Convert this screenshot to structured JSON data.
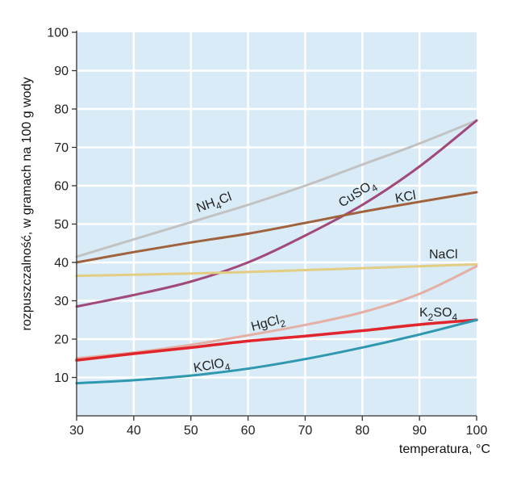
{
  "chart_data": {
    "type": "line",
    "title": "",
    "xlabel": "temperatura, °C",
    "ylabel": "rozpuszczalność, w gramach na 100 g wody",
    "xlim": [
      30,
      100
    ],
    "ylim": [
      0,
      100
    ],
    "x_ticks": [
      "30",
      "40",
      "50",
      "60",
      "70",
      "80",
      "90",
      "100"
    ],
    "y_ticks": [
      "10",
      "20",
      "30",
      "40",
      "50",
      "60",
      "70",
      "80",
      "90",
      "100"
    ],
    "grid": true,
    "colors": {
      "plot_background": "#d8ebf6",
      "grid": "#ffffff",
      "axis": "#333333"
    },
    "series": [
      {
        "name": "NH4Cl",
        "label_main": "NH",
        "label_sub": "4",
        "label_tail": "Cl",
        "color": "#c2c2c2",
        "x": [
          30,
          40,
          50,
          60,
          70,
          80,
          90,
          100
        ],
        "y": [
          41.5,
          46,
          50.5,
          55,
          60,
          65.5,
          71,
          77
        ]
      },
      {
        "name": "CuSO4",
        "label_main": "CuSO",
        "label_sub": "4",
        "label_tail": "",
        "color": "#a0497a",
        "x": [
          30,
          40,
          50,
          60,
          70,
          80,
          90,
          100
        ],
        "y": [
          28.5,
          31.5,
          35,
          40,
          47,
          55,
          65,
          77
        ]
      },
      {
        "name": "KCl",
        "label_main": "KCl",
        "label_sub": "",
        "label_tail": "",
        "color": "#a0623c",
        "x": [
          30,
          40,
          50,
          60,
          70,
          80,
          90,
          100
        ],
        "y": [
          40,
          42.7,
          45.2,
          47.5,
          50.3,
          53.2,
          55.8,
          58.3
        ]
      },
      {
        "name": "NaCl",
        "label_main": "NaCl",
        "label_sub": "",
        "label_tail": "",
        "color": "#e3cd85",
        "x": [
          30,
          40,
          50,
          60,
          70,
          80,
          90,
          100
        ],
        "y": [
          36.5,
          36.8,
          37.1,
          37.5,
          38,
          38.5,
          39,
          39.5
        ]
      },
      {
        "name": "HgCl2",
        "label_main": "HgCl",
        "label_sub": "2",
        "label_tail": "",
        "color": "#e4b0a6",
        "x": [
          30,
          40,
          50,
          60,
          70,
          80,
          90,
          100
        ],
        "y": [
          15,
          16.5,
          18.5,
          21,
          23.7,
          27,
          31.8,
          39
        ]
      },
      {
        "name": "K2SO4",
        "label_main": "K",
        "label_sub": "2",
        "label_tail": "SO4",
        "color": "#e0262c",
        "x": [
          30,
          40,
          50,
          60,
          70,
          80,
          90,
          100
        ],
        "y": [
          14.5,
          16.2,
          17.8,
          19.5,
          20.8,
          22.2,
          23.8,
          25
        ]
      },
      {
        "name": "KClO4",
        "label_main": "KClO",
        "label_sub": "4",
        "label_tail": "",
        "color": "#2f98b0",
        "x": [
          30,
          40,
          50,
          60,
          70,
          80,
          90,
          100
        ],
        "y": [
          8.5,
          9.3,
          10.5,
          12.3,
          14.8,
          17.8,
          21.2,
          25
        ]
      }
    ]
  }
}
